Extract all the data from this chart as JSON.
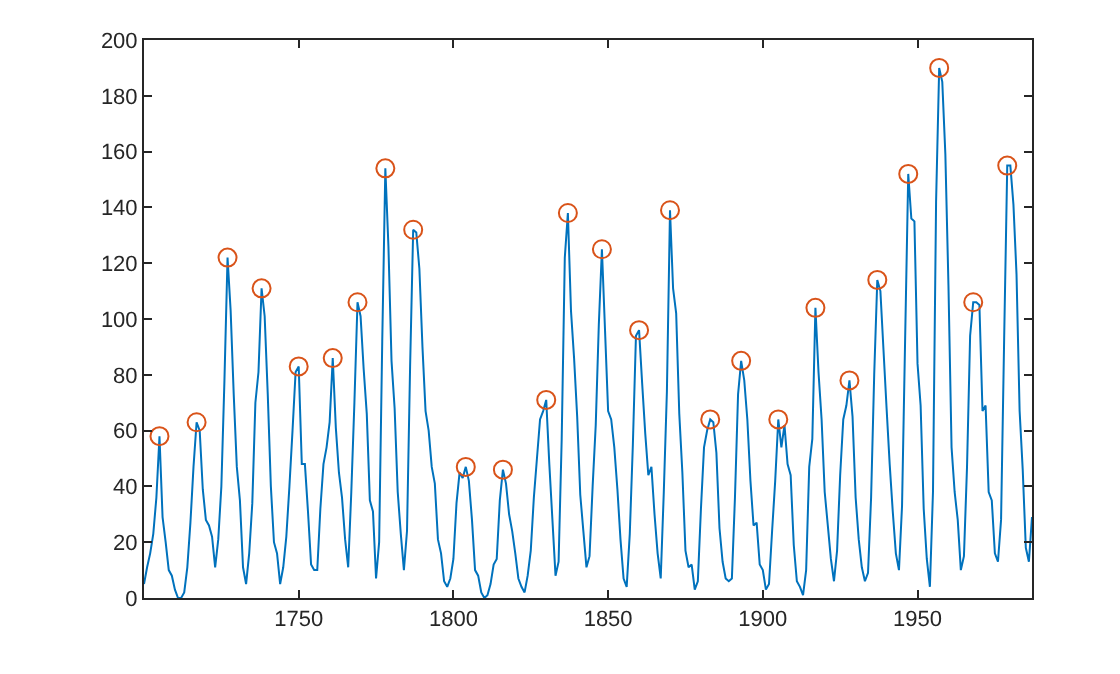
{
  "chart_data": {
    "type": "line",
    "xlim": [
      1700,
      1987
    ],
    "xticks": [
      1750,
      1800,
      1850,
      1900,
      1950
    ],
    "ylim": [
      0,
      200
    ],
    "yticks": [
      0,
      20,
      40,
      60,
      80,
      100,
      120,
      140,
      160,
      180,
      200
    ],
    "series": [
      {
        "color": "#0072bd",
        "marker": "none",
        "line_style": "solid",
        "x": [
          1700,
          1701,
          1702,
          1703,
          1704,
          1705,
          1706,
          1707,
          1708,
          1709,
          1710,
          1711,
          1712,
          1713,
          1714,
          1715,
          1716,
          1717,
          1718,
          1719,
          1720,
          1721,
          1722,
          1723,
          1724,
          1725,
          1726,
          1727,
          1728,
          1729,
          1730,
          1731,
          1732,
          1733,
          1734,
          1735,
          1736,
          1737,
          1738,
          1739,
          1740,
          1741,
          1742,
          1743,
          1744,
          1745,
          1746,
          1747,
          1748,
          1749,
          1750,
          1751,
          1752,
          1753,
          1754,
          1755,
          1756,
          1757,
          1758,
          1759,
          1760,
          1761,
          1762,
          1763,
          1764,
          1765,
          1766,
          1767,
          1768,
          1769,
          1770,
          1771,
          1772,
          1773,
          1774,
          1775,
          1776,
          1777,
          1778,
          1779,
          1780,
          1781,
          1782,
          1783,
          1784,
          1785,
          1786,
          1787,
          1788,
          1789,
          1790,
          1791,
          1792,
          1793,
          1794,
          1795,
          1796,
          1797,
          1798,
          1799,
          1800,
          1801,
          1802,
          1803,
          1804,
          1805,
          1806,
          1807,
          1808,
          1809,
          1810,
          1811,
          1812,
          1813,
          1814,
          1815,
          1816,
          1817,
          1818,
          1819,
          1820,
          1821,
          1822,
          1823,
          1824,
          1825,
          1826,
          1827,
          1828,
          1829,
          1830,
          1831,
          1832,
          1833,
          1834,
          1835,
          1836,
          1837,
          1838,
          1839,
          1840,
          1841,
          1842,
          1843,
          1844,
          1845,
          1846,
          1847,
          1848,
          1849,
          1850,
          1851,
          1852,
          1853,
          1854,
          1855,
          1856,
          1857,
          1858,
          1859,
          1860,
          1861,
          1862,
          1863,
          1864,
          1865,
          1866,
          1867,
          1868,
          1869,
          1870,
          1871,
          1872,
          1873,
          1874,
          1875,
          1876,
          1877,
          1878,
          1879,
          1880,
          1881,
          1882,
          1883,
          1884,
          1885,
          1886,
          1887,
          1888,
          1889,
          1890,
          1891,
          1892,
          1893,
          1894,
          1895,
          1896,
          1897,
          1898,
          1899,
          1900,
          1901,
          1902,
          1903,
          1904,
          1905,
          1906,
          1907,
          1908,
          1909,
          1910,
          1911,
          1912,
          1913,
          1914,
          1915,
          1916,
          1917,
          1918,
          1919,
          1920,
          1921,
          1922,
          1923,
          1924,
          1925,
          1926,
          1927,
          1928,
          1929,
          1930,
          1931,
          1932,
          1933,
          1934,
          1935,
          1936,
          1937,
          1938,
          1939,
          1940,
          1941,
          1942,
          1943,
          1944,
          1945,
          1946,
          1947,
          1948,
          1949,
          1950,
          1951,
          1952,
          1953,
          1954,
          1955,
          1956,
          1957,
          1958,
          1959,
          1960,
          1961,
          1962,
          1963,
          1964,
          1965,
          1966,
          1967,
          1968,
          1969,
          1970,
          1971,
          1972,
          1973,
          1974,
          1975,
          1976,
          1977,
          1978,
          1979,
          1980,
          1981,
          1982,
          1983,
          1984,
          1985,
          1986,
          1987
        ],
        "values": [
          5,
          11,
          16,
          23,
          36,
          58,
          29,
          20,
          10,
          8,
          3,
          0,
          0,
          2,
          11,
          27,
          47,
          63,
          60,
          39,
          28,
          26,
          22,
          11,
          21,
          40,
          78,
          122,
          103,
          73,
          47,
          35,
          11,
          5,
          16,
          34,
          70,
          81,
          111,
          101,
          73,
          40,
          20,
          16,
          5,
          11,
          22,
          40,
          60,
          81,
          83,
          48,
          48,
          31,
          12,
          10,
          10,
          32,
          48,
          54,
          63,
          86,
          61,
          45,
          36,
          21,
          11,
          38,
          70,
          106,
          101,
          82,
          66,
          35,
          31,
          7,
          20,
          92,
          154,
          126,
          85,
          68,
          38,
          23,
          10,
          24,
          83,
          132,
          131,
          118,
          90,
          67,
          60,
          47,
          41,
          21,
          16,
          6,
          4,
          7,
          14,
          34,
          45,
          43,
          47,
          42,
          28,
          10,
          8,
          2,
          0,
          1,
          5,
          12,
          14,
          35,
          46,
          41,
          30,
          24,
          16,
          7,
          4,
          2,
          8,
          17,
          36,
          50,
          64,
          67,
          71,
          48,
          28,
          8,
          13,
          57,
          122,
          138,
          103,
          86,
          65,
          37,
          24,
          11,
          15,
          40,
          62,
          98,
          125,
          96,
          67,
          64,
          54,
          39,
          21,
          7,
          4,
          23,
          55,
          94,
          96,
          77,
          59,
          44,
          47,
          30,
          16,
          7,
          38,
          74,
          139,
          111,
          102,
          66,
          45,
          17,
          11,
          12,
          3,
          6,
          32,
          54,
          60,
          64,
          63,
          52,
          25,
          13,
          7,
          6,
          7,
          36,
          73,
          85,
          78,
          64,
          42,
          26,
          27,
          12,
          10,
          3,
          5,
          24,
          42,
          64,
          54,
          62,
          48,
          44,
          19,
          6,
          4,
          1,
          10,
          47,
          57,
          104,
          81,
          64,
          38,
          26,
          14,
          6,
          17,
          44,
          64,
          69,
          78,
          65,
          36,
          21,
          11,
          6,
          9,
          36,
          80,
          114,
          110,
          89,
          68,
          48,
          31,
          16,
          10,
          33,
          93,
          152,
          136,
          135,
          84,
          69,
          32,
          14,
          4,
          38,
          142,
          190,
          185,
          159,
          112,
          54,
          38,
          28,
          10,
          15,
          47,
          94,
          106,
          106,
          105,
          67,
          69,
          38,
          35,
          16,
          13,
          28,
          93,
          155,
          155,
          141,
          116,
          67,
          46,
          18,
          13,
          29
        ]
      },
      {
        "type": "scatter",
        "color": "#d95319",
        "marker": "circle",
        "x": [
          1705,
          1717,
          1727,
          1738,
          1750,
          1761,
          1769,
          1778,
          1787,
          1804,
          1816,
          1830,
          1837,
          1848,
          1860,
          1870,
          1883,
          1893,
          1905,
          1917,
          1928,
          1937,
          1947,
          1957,
          1968,
          1979
        ],
        "values": [
          58,
          63,
          122,
          111,
          83,
          86,
          106,
          154,
          132,
          47,
          46,
          71,
          138,
          125,
          96,
          139,
          64,
          85,
          64,
          104,
          78,
          114,
          152,
          190,
          106,
          155
        ]
      }
    ]
  }
}
